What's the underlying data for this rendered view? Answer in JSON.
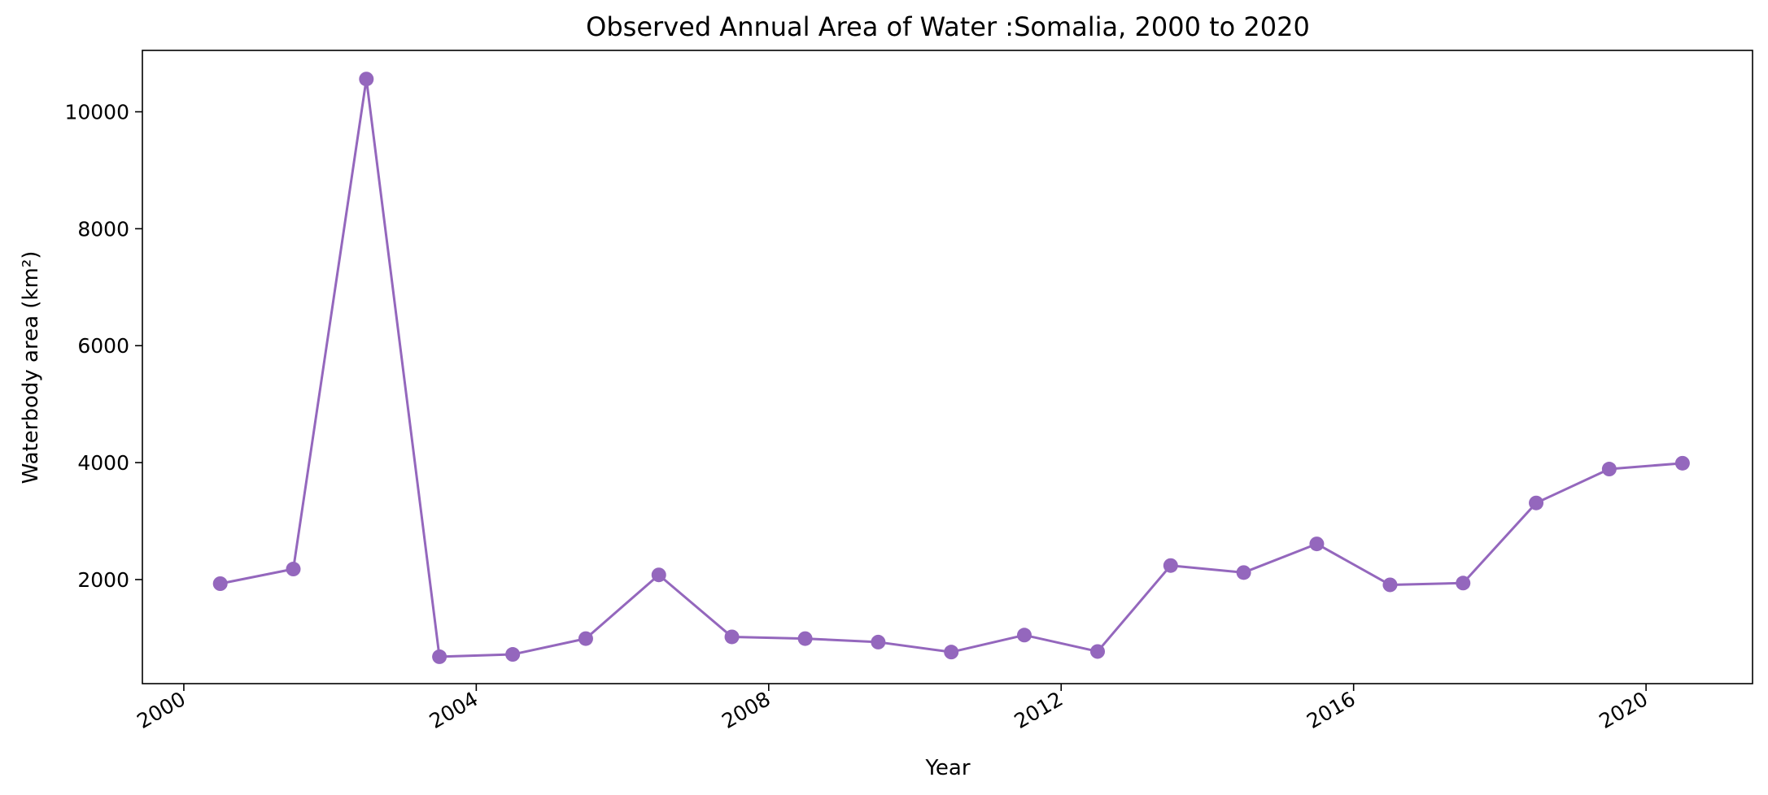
{
  "chart_data": {
    "type": "line",
    "title": "Observed Annual Area of Water :Somalia, 2000 to 2020",
    "xlabel": "Year",
    "ylabel": "Waterbody area (km²)",
    "x_ticks": [
      "2000",
      "2004",
      "2008",
      "2012",
      "2016",
      "2020"
    ],
    "y_ticks": [
      "2000",
      "4000",
      "6000",
      "8000",
      "10000"
    ],
    "ylim": [
      220,
      11050
    ],
    "xlim": [
      "1999-06-08",
      "2021-06-16"
    ],
    "grid": false,
    "color": "#9467bd",
    "series": [
      {
        "x": [
          "2000-07-01",
          "2001-07-01",
          "2002-07-01",
          "2003-07-01",
          "2004-07-01",
          "2005-07-01",
          "2006-07-01",
          "2007-07-01",
          "2008-07-01",
          "2009-07-01",
          "2010-07-01",
          "2011-07-01",
          "2012-07-01",
          "2013-07-01",
          "2014-07-01",
          "2015-07-01",
          "2016-07-01",
          "2017-07-01",
          "2018-07-01",
          "2019-07-01",
          "2020-07-01"
        ],
        "values": [
          1930,
          2180,
          10560,
          680,
          720,
          990,
          2080,
          1020,
          990,
          930,
          760,
          1050,
          770,
          2240,
          2120,
          2610,
          1910,
          1940,
          3310,
          3890,
          3990
        ]
      }
    ]
  }
}
